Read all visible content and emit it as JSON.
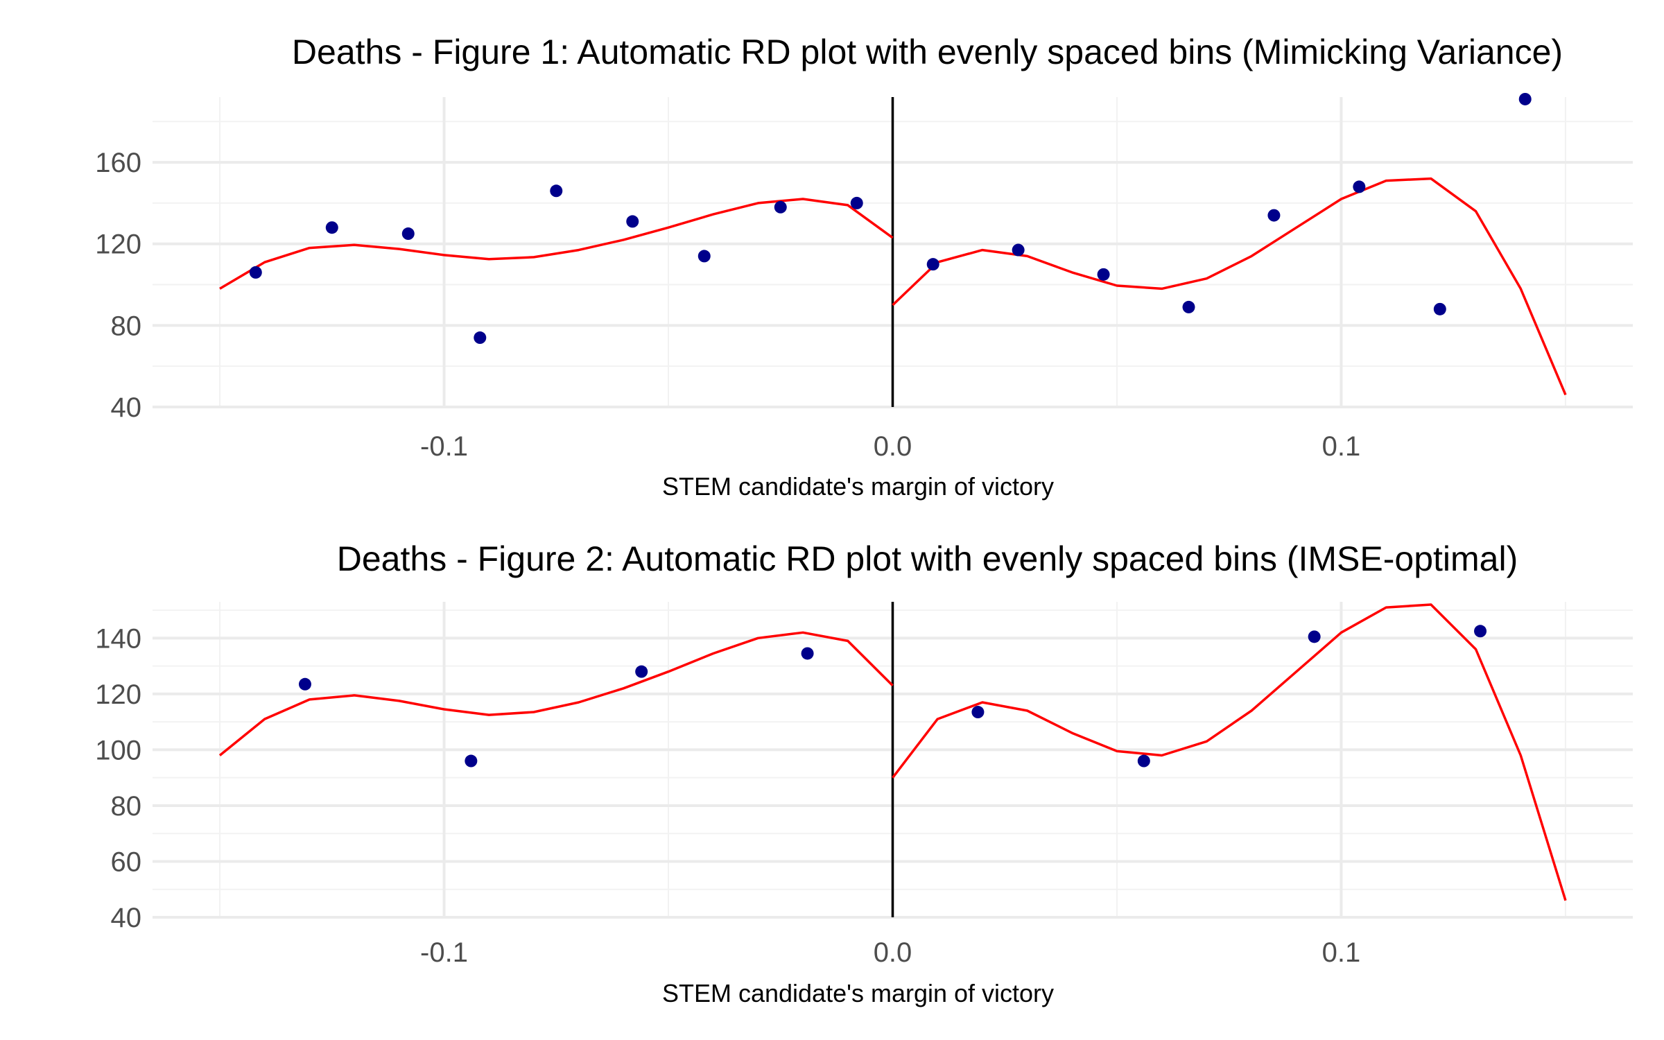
{
  "colors": {
    "points": "#00008B",
    "fit_line": "#FF0000",
    "cutoff_line": "#000000",
    "grid_major": "#EBEBEB",
    "grid_minor": "#F2F2F2"
  },
  "chart_data": [
    {
      "type": "scatter",
      "title": "Deaths - Figure 1: Automatic RD plot with evenly spaced bins (Mimicking Variance)",
      "xlabel": "STEM candidate's margin of victory",
      "ylabel": "",
      "xlim": [
        -0.165,
        0.165
      ],
      "ylim": [
        40,
        192
      ],
      "x_ticks": [
        -0.1,
        0.0,
        0.1
      ],
      "x_tick_labels": [
        "-0.1",
        "0.0",
        "0.1"
      ],
      "y_ticks": [
        40,
        80,
        120,
        160
      ],
      "y_tick_labels": [
        "40",
        "80",
        "120",
        "160"
      ],
      "grid": true,
      "cutoff": 0.0,
      "series": [
        {
          "kind": "points",
          "x": [
            -0.142,
            -0.125,
            -0.108,
            -0.092,
            -0.075,
            -0.058,
            -0.042,
            -0.025,
            -0.008,
            0.009,
            0.028,
            0.047,
            0.066,
            0.085,
            0.104,
            0.122,
            0.141
          ],
          "y": [
            106,
            128,
            125,
            74,
            146,
            131,
            114,
            138,
            140,
            110,
            117,
            105,
            89,
            134,
            148,
            88,
            191
          ]
        },
        {
          "kind": "line",
          "x": [
            -0.15,
            -0.14,
            -0.13,
            -0.12,
            -0.11,
            -0.1,
            -0.09,
            -0.08,
            -0.07,
            -0.06,
            -0.05,
            -0.04,
            -0.03,
            -0.02,
            -0.01,
            0.0
          ],
          "y": [
            98,
            111,
            118,
            119.5,
            117.5,
            114.5,
            112.5,
            113.5,
            117,
            122,
            128,
            134.5,
            140,
            142,
            139,
            123
          ]
        },
        {
          "kind": "line",
          "x": [
            0.0,
            0.01,
            0.02,
            0.03,
            0.04,
            0.05,
            0.06,
            0.07,
            0.08,
            0.09,
            0.1,
            0.11,
            0.12,
            0.13,
            0.14,
            0.15
          ],
          "y": [
            90,
            111,
            117,
            114,
            106,
            99.5,
            98,
            103,
            114,
            128,
            142,
            151,
            152,
            136,
            98,
            46
          ]
        }
      ]
    },
    {
      "type": "scatter",
      "title": "Deaths - Figure 2: Automatic RD plot with evenly spaced bins (IMSE-optimal)",
      "xlabel": "STEM candidate's margin of victory",
      "ylabel": "",
      "xlim": [
        -0.165,
        0.165
      ],
      "ylim": [
        40,
        153
      ],
      "x_ticks": [
        -0.1,
        0.0,
        0.1
      ],
      "x_tick_labels": [
        "-0.1",
        "0.0",
        "0.1"
      ],
      "y_ticks": [
        40,
        60,
        80,
        100,
        120,
        140
      ],
      "y_tick_labels": [
        "40",
        "60",
        "80",
        "100",
        "120",
        "140"
      ],
      "grid": true,
      "cutoff": 0.0,
      "series": [
        {
          "kind": "points",
          "x": [
            -0.131,
            -0.094,
            -0.056,
            -0.019,
            0.019,
            0.056,
            0.094,
            0.131
          ],
          "y": [
            123.5,
            96,
            128,
            134.5,
            113.5,
            96,
            140.5,
            142.5
          ]
        },
        {
          "kind": "line",
          "x": [
            -0.15,
            -0.14,
            -0.13,
            -0.12,
            -0.11,
            -0.1,
            -0.09,
            -0.08,
            -0.07,
            -0.06,
            -0.05,
            -0.04,
            -0.03,
            -0.02,
            -0.01,
            0.0
          ],
          "y": [
            98,
            111,
            118,
            119.5,
            117.5,
            114.5,
            112.5,
            113.5,
            117,
            122,
            128,
            134.5,
            140,
            142,
            139,
            123
          ]
        },
        {
          "kind": "line",
          "x": [
            0.0,
            0.01,
            0.02,
            0.03,
            0.04,
            0.05,
            0.06,
            0.07,
            0.08,
            0.09,
            0.1,
            0.11,
            0.12,
            0.13,
            0.14,
            0.15
          ],
          "y": [
            90,
            111,
            117,
            114,
            106,
            99.5,
            98,
            103,
            114,
            128,
            142,
            151,
            152,
            136,
            98,
            46
          ]
        }
      ]
    }
  ]
}
